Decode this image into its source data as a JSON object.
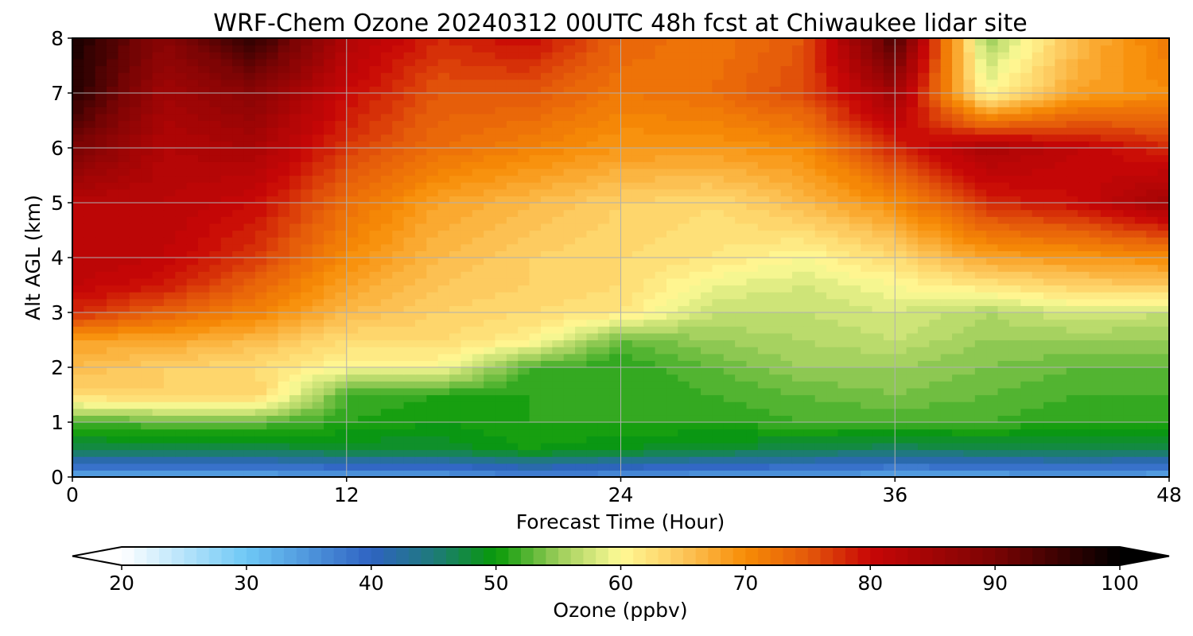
{
  "chart_data": {
    "type": "heatmap",
    "title": "WRF-Chem Ozone  20240312 00UTC 48h fcst at Chiwaukee lidar site",
    "xlabel": "Forecast Time (Hour)",
    "ylabel": "Alt AGL (km)",
    "xlim": [
      0,
      48
    ],
    "ylim": [
      0,
      8
    ],
    "xticks": [
      "0",
      "12",
      "24",
      "36",
      "48"
    ],
    "yticks": [
      "0",
      "1",
      "2",
      "3",
      "4",
      "5",
      "6",
      "7",
      "8"
    ],
    "grid": true,
    "x": [
      0,
      4,
      8,
      12,
      16,
      20,
      24,
      28,
      32,
      36,
      40,
      44,
      48
    ],
    "y": [
      0,
      0.5,
      1,
      1.5,
      2,
      2.5,
      3,
      3.5,
      4,
      5,
      6,
      7,
      8
    ],
    "z": [
      [
        33,
        33,
        33,
        34,
        34,
        36,
        35,
        34,
        34,
        33,
        33,
        34,
        33
      ],
      [
        47,
        47,
        47,
        48,
        48,
        50,
        49,
        48,
        47,
        46,
        47,
        47,
        47
      ],
      [
        52,
        53,
        53,
        51,
        50,
        51,
        51,
        51,
        52,
        52,
        52,
        51,
        51
      ],
      [
        63,
        64,
        64,
        52,
        51,
        51,
        51,
        52,
        53,
        54,
        53,
        52,
        52
      ],
      [
        66,
        64,
        63,
        60,
        60,
        52,
        51,
        53,
        55,
        55,
        54,
        53,
        53
      ],
      [
        68,
        68,
        66,
        63,
        63,
        61,
        53,
        55,
        56,
        57,
        55,
        55,
        55
      ],
      [
        78,
        74,
        71,
        66,
        64,
        63,
        62,
        57,
        57,
        58,
        56,
        58,
        57
      ],
      [
        81,
        79,
        74,
        68,
        65,
        64,
        63,
        59,
        58,
        60,
        62,
        64,
        65
      ],
      [
        82,
        81,
        77,
        70,
        66,
        64,
        63,
        62,
        60,
        63,
        68,
        69,
        70
      ],
      [
        82,
        82,
        80,
        73,
        68,
        66,
        64,
        63,
        66,
        70,
        78,
        80,
        85
      ],
      [
        90,
        83,
        84,
        77,
        73,
        71,
        69,
        69,
        70,
        78,
        84,
        81,
        78
      ],
      [
        97,
        85,
        88,
        80,
        75,
        75,
        72,
        73,
        76,
        85,
        60,
        68,
        70
      ],
      [
        98,
        88,
        96,
        83,
        78,
        80,
        74,
        72,
        75,
        94,
        55,
        66,
        72
      ]
    ],
    "colorbar": {
      "label": "Ozone  (ppbv)",
      "ticks": [
        "20",
        "30",
        "40",
        "50",
        "60",
        "70",
        "80",
        "90",
        "100"
      ],
      "min": 20,
      "max": 100,
      "step": 1,
      "extend": "both",
      "colormap_stops": [
        {
          "v": 20,
          "color": "#ffffff"
        },
        {
          "v": 30,
          "color": "#6ec8f6"
        },
        {
          "v": 40,
          "color": "#2f63c2"
        },
        {
          "v": 45,
          "color": "#1e7a7a"
        },
        {
          "v": 50,
          "color": "#089a08"
        },
        {
          "v": 55,
          "color": "#9ccd5a"
        },
        {
          "v": 60,
          "color": "#fffa96"
        },
        {
          "v": 65,
          "color": "#fdc65a"
        },
        {
          "v": 70,
          "color": "#f78c06"
        },
        {
          "v": 75,
          "color": "#e4590a"
        },
        {
          "v": 80,
          "color": "#c80606"
        },
        {
          "v": 90,
          "color": "#7a0404"
        },
        {
          "v": 100,
          "color": "#000000"
        }
      ]
    }
  }
}
